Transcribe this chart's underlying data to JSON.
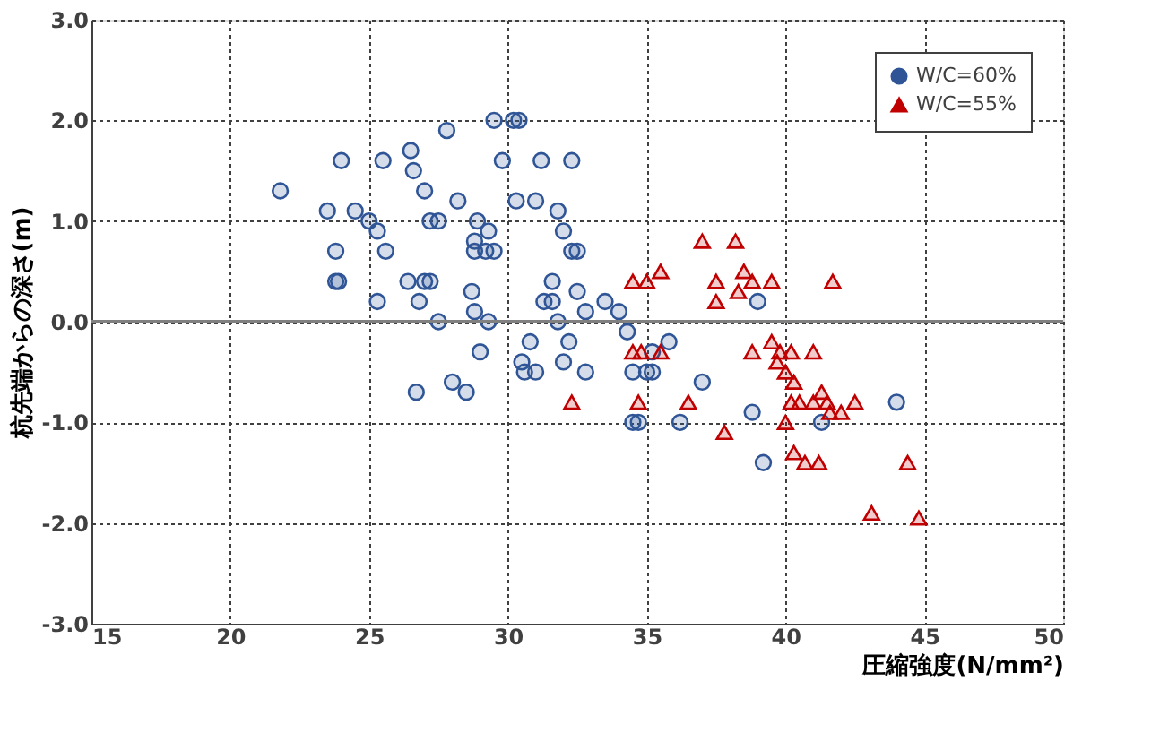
{
  "chart_data": {
    "type": "scatter",
    "xlabel": "圧縮強度(N/mm²)",
    "ylabel": "杭先端からの深さ(m)",
    "xlim": [
      15,
      50
    ],
    "xticks": [
      15,
      20,
      25,
      30,
      35,
      40,
      45,
      50
    ],
    "ylim": [
      -3,
      3
    ],
    "yticks": [
      {
        "value": -3,
        "label": "-3.0"
      },
      {
        "value": -2,
        "label": "-2.0"
      },
      {
        "value": -1,
        "label": "-1.0"
      },
      {
        "value": 0,
        "label": "0.0"
      },
      {
        "value": 1,
        "label": "1.0"
      },
      {
        "value": 2,
        "label": "2.0"
      },
      {
        "value": 3,
        "label": "3.0"
      }
    ],
    "grid": true,
    "legend": "top right",
    "ref_lines": [
      {
        "axis": "y",
        "value": 0,
        "color": "#808080",
        "line_style": "solid"
      }
    ],
    "series": [
      {
        "name": "W/C=60%",
        "color": "#2f5597",
        "marker": "circle",
        "x": [
          21.8,
          23.5,
          24.5,
          24.0,
          23.8,
          23.8,
          23.9,
          25.0,
          25.3,
          25.5,
          25.6,
          25.3,
          26.4,
          26.5,
          26.6,
          26.8,
          27.0,
          27.2,
          27.0,
          27.2,
          27.5,
          27.5,
          27.8,
          28.2,
          28.0,
          28.5,
          26.7,
          28.7,
          28.8,
          28.8,
          28.8,
          28.9,
          29.2,
          29.3,
          29.5,
          29.0,
          29.3,
          29.5,
          29.8,
          30.2,
          30.4,
          30.3,
          30.5,
          30.6,
          30.8,
          31.0,
          31.0,
          31.2,
          31.3,
          31.6,
          31.6,
          31.8,
          32.0,
          31.8,
          32.0,
          32.2,
          32.3,
          32.3,
          32.5,
          32.5,
          32.8,
          32.8,
          33.5,
          34.0,
          34.3,
          34.5,
          34.5,
          34.7,
          35.0,
          35.2,
          35.2,
          35.8,
          36.2,
          37.0,
          38.8,
          39.2,
          39.0,
          41.3,
          44.0
        ],
        "values": [
          1.3,
          1.1,
          1.1,
          1.6,
          0.7,
          0.4,
          0.4,
          1.0,
          0.9,
          1.6,
          0.7,
          0.2,
          0.4,
          1.7,
          1.5,
          0.2,
          0.4,
          0.4,
          1.3,
          1.0,
          1.0,
          0.0,
          1.9,
          1.2,
          -0.6,
          -0.7,
          -0.7,
          0.3,
          0.1,
          0.8,
          0.7,
          1.0,
          0.7,
          0.9,
          0.7,
          -0.3,
          0.0,
          2.0,
          1.6,
          2.0,
          2.0,
          1.2,
          -0.4,
          -0.5,
          -0.2,
          -0.5,
          1.2,
          1.6,
          0.2,
          0.4,
          0.2,
          1.1,
          0.9,
          0.0,
          -0.4,
          -0.2,
          0.7,
          1.6,
          0.3,
          0.7,
          0.1,
          -0.5,
          0.2,
          0.1,
          -0.1,
          -0.5,
          -1.0,
          -1.0,
          -0.5,
          -0.5,
          -0.3,
          -0.2,
          -1.0,
          -0.6,
          -0.9,
          -1.4,
          0.2,
          -1.0,
          -0.8
        ]
      },
      {
        "name": "W/C=55%",
        "color": "#c00000",
        "marker": "triangle",
        "x": [
          32.3,
          34.5,
          35.0,
          35.5,
          34.5,
          34.8,
          35.5,
          34.7,
          36.5,
          37.0,
          37.5,
          37.5,
          37.8,
          38.2,
          38.5,
          38.3,
          38.8,
          39.5,
          38.8,
          39.5,
          39.8,
          39.7,
          40.2,
          40.0,
          40.3,
          40.5,
          40.0,
          40.2,
          40.3,
          40.7,
          41.2,
          41.0,
          41.5,
          41.6,
          41.7,
          42.0,
          42.5,
          43.1,
          44.4,
          44.8,
          41.0,
          41.3
        ],
        "values": [
          -0.8,
          0.4,
          0.4,
          0.5,
          -0.3,
          -0.3,
          -0.3,
          -0.8,
          -0.8,
          0.8,
          0.4,
          0.2,
          -1.1,
          0.8,
          0.5,
          0.3,
          0.4,
          0.4,
          -0.3,
          -0.2,
          -0.3,
          -0.4,
          -0.3,
          -0.5,
          -0.6,
          -0.8,
          -1.0,
          -0.8,
          -1.3,
          -1.4,
          -1.4,
          -0.3,
          -0.8,
          -0.9,
          0.4,
          -0.9,
          -0.8,
          -1.9,
          -1.4,
          -1.95,
          -0.8,
          -0.7
        ]
      }
    ]
  }
}
